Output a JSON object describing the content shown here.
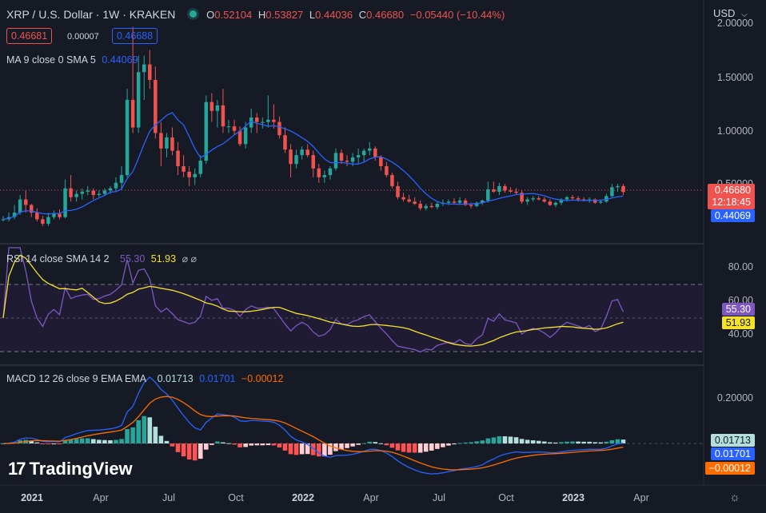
{
  "header": {
    "symbol_title": "XRP / U.S. Dollar · 1W · KRAKEN",
    "ohlc": {
      "o_label": "O",
      "o_value": "0.52104",
      "h_label": "H",
      "h_value": "0.53827",
      "l_label": "L",
      "l_value": "0.44036",
      "c_label": "C",
      "c_value": "0.46680",
      "change": "−0.05440 (−10.44%)"
    },
    "currency": "USD",
    "sell_price": "0.46681",
    "spread": "0.00007",
    "buy_price": "0.46688",
    "status_dot_color": "#26a69a"
  },
  "indicators": {
    "ma": {
      "label": "MA 9 close 0 SMA 5",
      "value": "0.44069",
      "color": "#2962ff"
    },
    "rsi": {
      "label": "RSI 14 close SMA 14 2",
      "value": "55.30",
      "sma_value": "51.93",
      "suffix": "⌀ ⌀",
      "color": "#7e57c2",
      "sma_color": "#f5e32b"
    },
    "macd": {
      "label": "MACD 12 26 close 9 EMA EMA",
      "hist_value": "0.01713",
      "macd_value": "0.01701",
      "signal_value": "−0.00012"
    }
  },
  "price_axis": {
    "ticks": [
      "2.00000",
      "1.50000",
      "1.00000",
      "0.50000"
    ],
    "last_price": "0.46680",
    "countdown": "12:18:45",
    "ma_tag": "0.44069"
  },
  "rsi_axis": {
    "ticks": [
      "80.00",
      "60.00",
      "40.00"
    ],
    "rsi_tag": "55.30",
    "sma_tag": "51.93"
  },
  "macd_axis": {
    "ticks": [
      "0.20000"
    ],
    "hist_tag": "0.01713",
    "macd_tag": "0.01701",
    "signal_tag": "−0.00012"
  },
  "time_axis": [
    {
      "label": "2021",
      "bold": true
    },
    {
      "label": "Apr",
      "bold": false
    },
    {
      "label": "Jul",
      "bold": false
    },
    {
      "label": "Oct",
      "bold": false
    },
    {
      "label": "2022",
      "bold": true
    },
    {
      "label": "Apr",
      "bold": false
    },
    {
      "label": "Jul",
      "bold": false
    },
    {
      "label": "Oct",
      "bold": false
    },
    {
      "label": "2023",
      "bold": true
    },
    {
      "label": "Apr",
      "bold": false
    }
  ],
  "branding": {
    "logo_text": "TradingView",
    "logo_mark": "17"
  },
  "colors": {
    "up": "#26a69a",
    "down": "#ef5350",
    "ma": "#2962ff",
    "macd": "#2962ff",
    "signal": "#ff6d00",
    "hist_up_strong": "#26a69a",
    "hist_up_weak": "#b2dfdb",
    "hist_down_strong": "#ff5252",
    "hist_down_weak": "#ffcdd2"
  },
  "chart_data": {
    "type": "candlestick",
    "title": "XRP / U.S. Dollar · 1W · KRAKEN",
    "xlabel": "",
    "ylabel": "USD",
    "ylim": [
      0,
      2.0
    ],
    "weeks": [
      {
        "o": 0.22,
        "h": 0.25,
        "l": 0.2,
        "c": 0.22
      },
      {
        "o": 0.22,
        "h": 0.28,
        "l": 0.2,
        "c": 0.24
      },
      {
        "o": 0.24,
        "h": 0.35,
        "l": 0.22,
        "c": 0.28
      },
      {
        "o": 0.28,
        "h": 0.44,
        "l": 0.26,
        "c": 0.4
      },
      {
        "o": 0.4,
        "h": 0.48,
        "l": 0.28,
        "c": 0.35
      },
      {
        "o": 0.35,
        "h": 0.36,
        "l": 0.24,
        "c": 0.28
      },
      {
        "o": 0.28,
        "h": 0.32,
        "l": 0.2,
        "c": 0.22
      },
      {
        "o": 0.22,
        "h": 0.25,
        "l": 0.16,
        "c": 0.18
      },
      {
        "o": 0.18,
        "h": 0.28,
        "l": 0.16,
        "c": 0.24
      },
      {
        "o": 0.24,
        "h": 0.3,
        "l": 0.22,
        "c": 0.27
      },
      {
        "o": 0.27,
        "h": 0.31,
        "l": 0.22,
        "c": 0.24
      },
      {
        "o": 0.24,
        "h": 0.58,
        "l": 0.23,
        "c": 0.5
      },
      {
        "o": 0.5,
        "h": 0.62,
        "l": 0.38,
        "c": 0.42
      },
      {
        "o": 0.42,
        "h": 0.48,
        "l": 0.38,
        "c": 0.45
      },
      {
        "o": 0.45,
        "h": 0.5,
        "l": 0.4,
        "c": 0.47
      },
      {
        "o": 0.47,
        "h": 0.52,
        "l": 0.44,
        "c": 0.48
      },
      {
        "o": 0.48,
        "h": 0.5,
        "l": 0.4,
        "c": 0.44
      },
      {
        "o": 0.44,
        "h": 0.48,
        "l": 0.42,
        "c": 0.45
      },
      {
        "o": 0.45,
        "h": 0.5,
        "l": 0.43,
        "c": 0.48
      },
      {
        "o": 0.48,
        "h": 0.52,
        "l": 0.45,
        "c": 0.5
      },
      {
        "o": 0.5,
        "h": 0.6,
        "l": 0.48,
        "c": 0.55
      },
      {
        "o": 0.55,
        "h": 0.7,
        "l": 0.5,
        "c": 0.62
      },
      {
        "o": 0.62,
        "h": 1.4,
        "l": 0.6,
        "c": 1.3
      },
      {
        "o": 1.3,
        "h": 1.96,
        "l": 1.0,
        "c": 1.05
      },
      {
        "o": 1.05,
        "h": 1.7,
        "l": 1.0,
        "c": 1.55
      },
      {
        "o": 1.55,
        "h": 1.7,
        "l": 1.3,
        "c": 1.62
      },
      {
        "o": 1.62,
        "h": 1.75,
        "l": 1.4,
        "c": 1.48
      },
      {
        "o": 1.48,
        "h": 1.6,
        "l": 0.95,
        "c": 1.0
      },
      {
        "o": 1.0,
        "h": 1.1,
        "l": 0.7,
        "c": 0.86
      },
      {
        "o": 0.86,
        "h": 1.0,
        "l": 0.78,
        "c": 0.96
      },
      {
        "o": 0.96,
        "h": 1.05,
        "l": 0.8,
        "c": 0.84
      },
      {
        "o": 0.84,
        "h": 0.92,
        "l": 0.62,
        "c": 0.7
      },
      {
        "o": 0.7,
        "h": 0.8,
        "l": 0.6,
        "c": 0.65
      },
      {
        "o": 0.65,
        "h": 0.7,
        "l": 0.52,
        "c": 0.6
      },
      {
        "o": 0.6,
        "h": 0.68,
        "l": 0.53,
        "c": 0.63
      },
      {
        "o": 0.63,
        "h": 0.8,
        "l": 0.6,
        "c": 0.75
      },
      {
        "o": 0.75,
        "h": 1.34,
        "l": 0.72,
        "c": 1.28
      },
      {
        "o": 1.28,
        "h": 1.36,
        "l": 1.1,
        "c": 1.2
      },
      {
        "o": 1.2,
        "h": 1.3,
        "l": 1.05,
        "c": 1.25
      },
      {
        "o": 1.25,
        "h": 1.4,
        "l": 1.0,
        "c": 1.06
      },
      {
        "o": 1.06,
        "h": 1.12,
        "l": 1.0,
        "c": 1.06
      },
      {
        "o": 1.06,
        "h": 1.12,
        "l": 0.98,
        "c": 1.02
      },
      {
        "o": 1.02,
        "h": 1.06,
        "l": 0.88,
        "c": 0.9
      },
      {
        "o": 0.9,
        "h": 1.1,
        "l": 0.86,
        "c": 1.05
      },
      {
        "o": 1.05,
        "h": 1.22,
        "l": 1.0,
        "c": 1.14
      },
      {
        "o": 1.14,
        "h": 1.18,
        "l": 1.0,
        "c": 1.1
      },
      {
        "o": 1.1,
        "h": 1.14,
        "l": 1.04,
        "c": 1.1
      },
      {
        "o": 1.1,
        "h": 1.34,
        "l": 1.05,
        "c": 1.12
      },
      {
        "o": 1.12,
        "h": 1.26,
        "l": 1.04,
        "c": 1.1
      },
      {
        "o": 1.1,
        "h": 1.15,
        "l": 0.95,
        "c": 0.98
      },
      {
        "o": 0.98,
        "h": 1.05,
        "l": 0.82,
        "c": 0.85
      },
      {
        "o": 0.85,
        "h": 0.9,
        "l": 0.6,
        "c": 0.72
      },
      {
        "o": 0.72,
        "h": 0.85,
        "l": 0.68,
        "c": 0.8
      },
      {
        "o": 0.8,
        "h": 0.88,
        "l": 0.76,
        "c": 0.85
      },
      {
        "o": 0.85,
        "h": 0.9,
        "l": 0.78,
        "c": 0.8
      },
      {
        "o": 0.8,
        "h": 0.84,
        "l": 0.6,
        "c": 0.68
      },
      {
        "o": 0.68,
        "h": 0.72,
        "l": 0.55,
        "c": 0.6
      },
      {
        "o": 0.6,
        "h": 0.66,
        "l": 0.55,
        "c": 0.62
      },
      {
        "o": 0.62,
        "h": 0.7,
        "l": 0.58,
        "c": 0.68
      },
      {
        "o": 0.68,
        "h": 0.86,
        "l": 0.66,
        "c": 0.82
      },
      {
        "o": 0.82,
        "h": 0.85,
        "l": 0.72,
        "c": 0.75
      },
      {
        "o": 0.75,
        "h": 0.8,
        "l": 0.7,
        "c": 0.74
      },
      {
        "o": 0.74,
        "h": 0.82,
        "l": 0.7,
        "c": 0.78
      },
      {
        "o": 0.78,
        "h": 0.86,
        "l": 0.72,
        "c": 0.8
      },
      {
        "o": 0.8,
        "h": 0.86,
        "l": 0.74,
        "c": 0.84
      },
      {
        "o": 0.84,
        "h": 0.92,
        "l": 0.8,
        "c": 0.86
      },
      {
        "o": 0.86,
        "h": 0.88,
        "l": 0.75,
        "c": 0.78
      },
      {
        "o": 0.78,
        "h": 0.8,
        "l": 0.66,
        "c": 0.7
      },
      {
        "o": 0.7,
        "h": 0.74,
        "l": 0.6,
        "c": 0.62
      },
      {
        "o": 0.62,
        "h": 0.64,
        "l": 0.5,
        "c": 0.52
      },
      {
        "o": 0.52,
        "h": 0.56,
        "l": 0.4,
        "c": 0.42
      },
      {
        "o": 0.42,
        "h": 0.46,
        "l": 0.38,
        "c": 0.4
      },
      {
        "o": 0.4,
        "h": 0.44,
        "l": 0.37,
        "c": 0.38
      },
      {
        "o": 0.38,
        "h": 0.42,
        "l": 0.35,
        "c": 0.36
      },
      {
        "o": 0.36,
        "h": 0.39,
        "l": 0.3,
        "c": 0.32
      },
      {
        "o": 0.32,
        "h": 0.36,
        "l": 0.3,
        "c": 0.34
      },
      {
        "o": 0.34,
        "h": 0.37,
        "l": 0.32,
        "c": 0.33
      },
      {
        "o": 0.33,
        "h": 0.38,
        "l": 0.31,
        "c": 0.36
      },
      {
        "o": 0.36,
        "h": 0.4,
        "l": 0.34,
        "c": 0.37
      },
      {
        "o": 0.37,
        "h": 0.4,
        "l": 0.35,
        "c": 0.38
      },
      {
        "o": 0.38,
        "h": 0.41,
        "l": 0.36,
        "c": 0.37
      },
      {
        "o": 0.37,
        "h": 0.42,
        "l": 0.35,
        "c": 0.39
      },
      {
        "o": 0.39,
        "h": 0.41,
        "l": 0.34,
        "c": 0.35
      },
      {
        "o": 0.35,
        "h": 0.37,
        "l": 0.32,
        "c": 0.34
      },
      {
        "o": 0.34,
        "h": 0.38,
        "l": 0.33,
        "c": 0.37
      },
      {
        "o": 0.37,
        "h": 0.4,
        "l": 0.35,
        "c": 0.39
      },
      {
        "o": 0.39,
        "h": 0.56,
        "l": 0.37,
        "c": 0.49
      },
      {
        "o": 0.49,
        "h": 0.56,
        "l": 0.46,
        "c": 0.47
      },
      {
        "o": 0.47,
        "h": 0.55,
        "l": 0.44,
        "c": 0.52
      },
      {
        "o": 0.52,
        "h": 0.54,
        "l": 0.46,
        "c": 0.48
      },
      {
        "o": 0.48,
        "h": 0.51,
        "l": 0.46,
        "c": 0.47
      },
      {
        "o": 0.47,
        "h": 0.5,
        "l": 0.44,
        "c": 0.46
      },
      {
        "o": 0.46,
        "h": 0.48,
        "l": 0.36,
        "c": 0.38
      },
      {
        "o": 0.38,
        "h": 0.42,
        "l": 0.35,
        "c": 0.4
      },
      {
        "o": 0.4,
        "h": 0.43,
        "l": 0.38,
        "c": 0.41
      },
      {
        "o": 0.41,
        "h": 0.43,
        "l": 0.39,
        "c": 0.4
      },
      {
        "o": 0.4,
        "h": 0.42,
        "l": 0.37,
        "c": 0.38
      },
      {
        "o": 0.38,
        "h": 0.4,
        "l": 0.34,
        "c": 0.35
      },
      {
        "o": 0.35,
        "h": 0.38,
        "l": 0.33,
        "c": 0.37
      },
      {
        "o": 0.37,
        "h": 0.41,
        "l": 0.35,
        "c": 0.4
      },
      {
        "o": 0.4,
        "h": 0.43,
        "l": 0.38,
        "c": 0.42
      },
      {
        "o": 0.42,
        "h": 0.44,
        "l": 0.39,
        "c": 0.41
      },
      {
        "o": 0.41,
        "h": 0.43,
        "l": 0.38,
        "c": 0.4
      },
      {
        "o": 0.4,
        "h": 0.42,
        "l": 0.38,
        "c": 0.39
      },
      {
        "o": 0.39,
        "h": 0.42,
        "l": 0.37,
        "c": 0.4
      },
      {
        "o": 0.4,
        "h": 0.41,
        "l": 0.36,
        "c": 0.37
      },
      {
        "o": 0.37,
        "h": 0.4,
        "l": 0.36,
        "c": 0.38
      },
      {
        "o": 0.38,
        "h": 0.45,
        "l": 0.37,
        "c": 0.43
      },
      {
        "o": 0.43,
        "h": 0.54,
        "l": 0.42,
        "c": 0.51
      },
      {
        "o": 0.51,
        "h": 0.54,
        "l": 0.47,
        "c": 0.52
      },
      {
        "o": 0.52,
        "h": 0.53827,
        "l": 0.44036,
        "c": 0.4668
      }
    ]
  }
}
